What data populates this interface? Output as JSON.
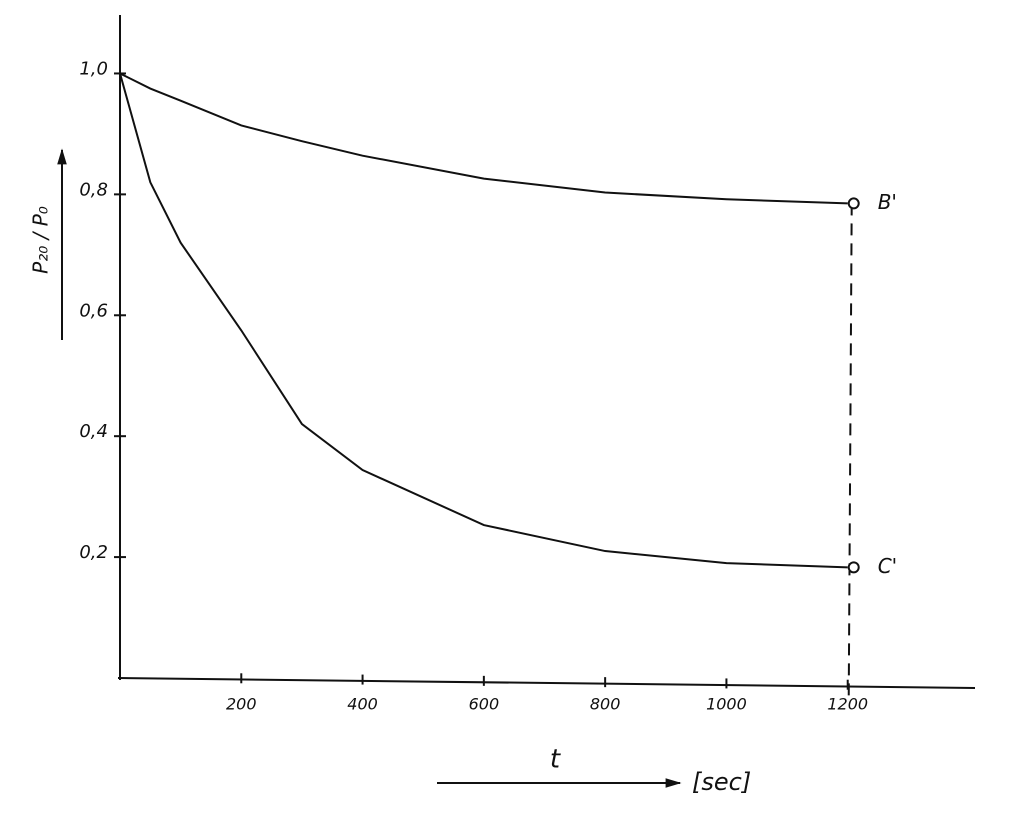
{
  "chart_data": {
    "type": "line",
    "y_label": "P₂₀ / P₀",
    "x_label": "t",
    "x_unit": "[sec]",
    "x": [
      0,
      50,
      100,
      200,
      300,
      400,
      600,
      800,
      1000,
      1200
    ],
    "series": [
      {
        "name": "B'",
        "color": "#111111",
        "values": [
          1.0,
          0.975,
          0.955,
          0.914,
          0.888,
          0.864,
          0.826,
          0.803,
          0.792,
          0.785
        ]
      },
      {
        "name": "C'",
        "color": "#111111",
        "values": [
          1.0,
          0.82,
          0.72,
          0.575,
          0.42,
          0.344,
          0.253,
          0.21,
          0.19,
          0.183
        ]
      }
    ],
    "xlim": [
      0,
      1400
    ],
    "ylim": [
      0,
      1.1
    ],
    "xticks": [
      200,
      400,
      600,
      800,
      1000,
      1200
    ],
    "yticks": [
      {
        "value": 0.2,
        "label": "0,2"
      },
      {
        "value": 0.4,
        "label": "0,4"
      },
      {
        "value": 0.6,
        "label": "0,6"
      },
      {
        "value": 0.8,
        "label": "0,8"
      },
      {
        "value": 1.0,
        "label": "1,0"
      }
    ],
    "grid": false
  }
}
